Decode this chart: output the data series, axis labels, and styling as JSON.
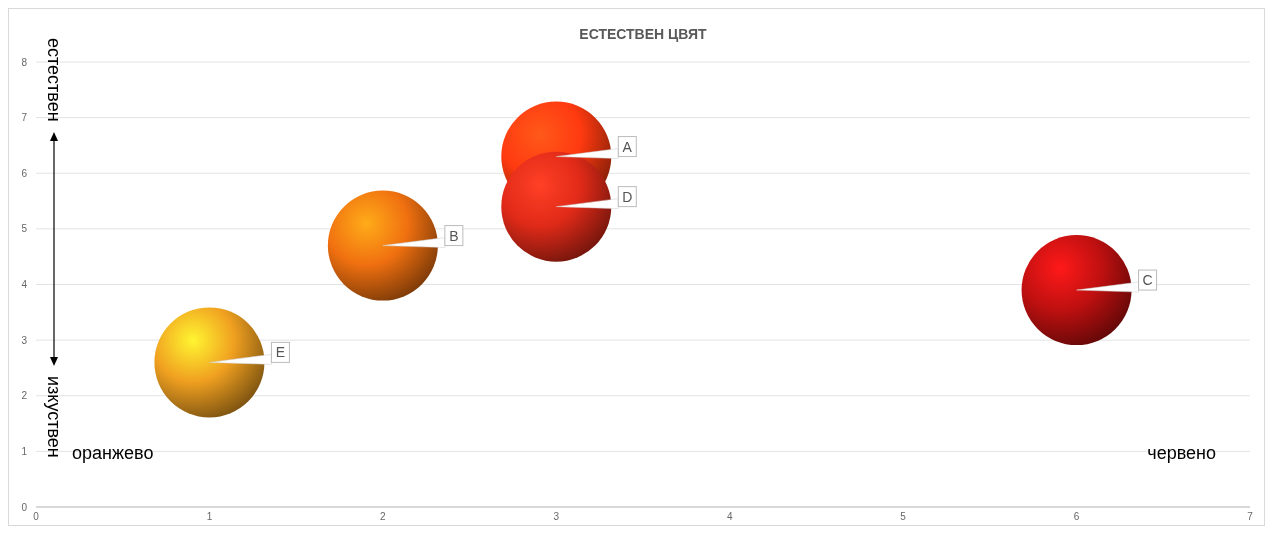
{
  "chart_data": {
    "type": "bubble",
    "title": "ЕСТЕСТВЕН ЦВЯТ",
    "xlim": [
      0,
      7
    ],
    "xticks": [
      0,
      1,
      2,
      3,
      4,
      5,
      6,
      7
    ],
    "ylim": [
      0,
      8
    ],
    "yticks": [
      0,
      1,
      2,
      3,
      4,
      5,
      6,
      7,
      8
    ],
    "grid": "y",
    "x": [
      3,
      3,
      2,
      6,
      1
    ],
    "values": [
      6.3,
      5.4,
      4.7,
      3.9,
      2.6
    ],
    "sizes": [
      1,
      1,
      1,
      1,
      1
    ],
    "colors": [
      "#ff3a10",
      "#e02a18",
      "#f07010",
      "#c01010",
      "#f0a020"
    ],
    "annotations": [
      "естествен",
      "изкуствен",
      "оранжево",
      "червено",
      {
        "text": "A",
        "x": 3,
        "y": 6.3
      },
      {
        "text": "D",
        "x": 3,
        "y": 5.4
      },
      {
        "text": "B",
        "x": 2,
        "y": 4.7
      },
      {
        "text": "C",
        "x": 6,
        "y": 3.9
      },
      {
        "text": "E",
        "x": 1,
        "y": 2.6
      }
    ]
  }
}
